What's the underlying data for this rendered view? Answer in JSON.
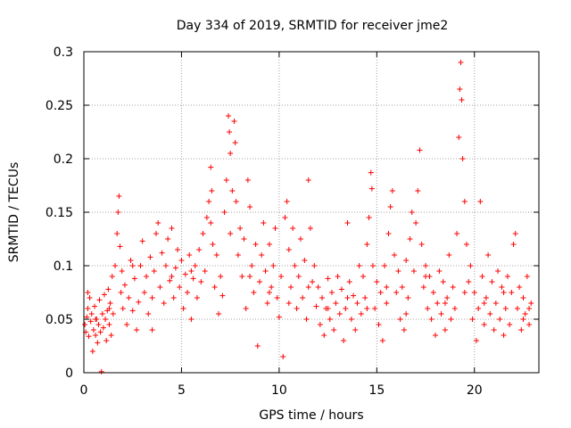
{
  "chart_data": {
    "type": "scatter",
    "title": "Day 334 of 2019, SRMTID for receiver jme2",
    "xlabel": "GPS time / hours",
    "ylabel": "SRMTID / TECUs",
    "xlim": [
      0,
      23.3
    ],
    "ylim": [
      0,
      0.3
    ],
    "grid": true,
    "x_ticks": [
      0,
      5,
      10,
      15,
      20
    ],
    "x_tick_labels": [
      "0",
      "5",
      "10",
      "15",
      "20"
    ],
    "y_ticks": [
      0,
      0.05,
      0.1,
      0.15,
      0.2,
      0.25,
      0.3
    ],
    "y_tick_labels": [
      "0",
      "0.05",
      "0.1",
      "0.15",
      "0.2",
      "0.25",
      "0.3"
    ],
    "marker": "+",
    "color": "#ff0000",
    "series": [
      {
        "name": "SRMTID",
        "points": [
          [
            0.05,
            0.045
          ],
          [
            0.1,
            0.038
          ],
          [
            0.15,
            0.052
          ],
          [
            0.2,
            0.06
          ],
          [
            0.25,
            0.034
          ],
          [
            0.3,
            0.07
          ],
          [
            0.35,
            0.048
          ],
          [
            0.4,
            0.055
          ],
          [
            0.45,
            0.02
          ],
          [
            0.5,
            0.04
          ],
          [
            0.55,
            0.062
          ],
          [
            0.6,
            0.035
          ],
          [
            0.65,
            0.05
          ],
          [
            0.7,
            0.028
          ],
          [
            0.75,
            0.045
          ],
          [
            0.8,
            0.068
          ],
          [
            0.85,
            0.038
          ],
          [
            0.9,
            0.001
          ],
          [
            0.95,
            0.055
          ],
          [
            1.0,
            0.042
          ],
          [
            1.05,
            0.073
          ],
          [
            1.1,
            0.05
          ],
          [
            1.15,
            0.03
          ],
          [
            1.2,
            0.058
          ],
          [
            1.25,
            0.078
          ],
          [
            1.3,
            0.045
          ],
          [
            1.35,
            0.065
          ],
          [
            1.4,
            0.035
          ],
          [
            1.45,
            0.09
          ],
          [
            1.5,
            0.055
          ],
          [
            1.6,
            0.1
          ],
          [
            1.7,
            0.13
          ],
          [
            1.75,
            0.15
          ],
          [
            1.8,
            0.165
          ],
          [
            1.85,
            0.118
          ],
          [
            1.9,
            0.075
          ],
          [
            1.95,
            0.095
          ],
          [
            2.0,
            0.06
          ],
          [
            2.1,
            0.082
          ],
          [
            2.2,
            0.045
          ],
          [
            2.3,
            0.07
          ],
          [
            2.4,
            0.105
          ],
          [
            2.5,
            0.058
          ],
          [
            2.6,
            0.088
          ],
          [
            2.7,
            0.04
          ],
          [
            2.8,
            0.066
          ],
          [
            2.9,
            0.1
          ],
          [
            3.0,
            0.123
          ],
          [
            3.1,
            0.075
          ],
          [
            3.2,
            0.09
          ],
          [
            3.3,
            0.055
          ],
          [
            3.4,
            0.108
          ],
          [
            3.5,
            0.07
          ],
          [
            3.6,
            0.095
          ],
          [
            3.7,
            0.13
          ],
          [
            3.8,
            0.14
          ],
          [
            3.9,
            0.08
          ],
          [
            4.0,
            0.112
          ],
          [
            4.1,
            0.065
          ],
          [
            4.2,
            0.1
          ],
          [
            4.3,
            0.125
          ],
          [
            4.4,
            0.086
          ],
          [
            4.5,
            0.135
          ],
          [
            4.6,
            0.07
          ],
          [
            4.7,
            0.098
          ],
          [
            4.8,
            0.115
          ],
          [
            4.9,
            0.08
          ],
          [
            5.0,
            0.105
          ],
          [
            5.1,
            0.06
          ],
          [
            5.2,
            0.092
          ],
          [
            5.3,
            0.075
          ],
          [
            5.4,
            0.11
          ],
          [
            5.5,
            0.05
          ],
          [
            5.6,
            0.088
          ],
          [
            5.7,
            0.1
          ],
          [
            5.8,
            0.07
          ],
          [
            5.9,
            0.115
          ],
          [
            6.0,
            0.085
          ],
          [
            6.1,
            0.13
          ],
          [
            6.2,
            0.095
          ],
          [
            6.3,
            0.145
          ],
          [
            6.4,
            0.16
          ],
          [
            6.5,
            0.192
          ],
          [
            6.55,
            0.17
          ],
          [
            6.6,
            0.12
          ],
          [
            6.7,
            0.08
          ],
          [
            6.8,
            0.11
          ],
          [
            6.9,
            0.055
          ],
          [
            7.0,
            0.09
          ],
          [
            7.1,
            0.072
          ],
          [
            7.2,
            0.15
          ],
          [
            7.3,
            0.18
          ],
          [
            7.4,
            0.24
          ],
          [
            7.45,
            0.225
          ],
          [
            7.5,
            0.205
          ],
          [
            7.6,
            0.17
          ],
          [
            7.7,
            0.235
          ],
          [
            7.75,
            0.215
          ],
          [
            7.8,
            0.16
          ],
          [
            7.9,
            0.11
          ],
          [
            8.0,
            0.135
          ],
          [
            8.1,
            0.09
          ],
          [
            8.2,
            0.125
          ],
          [
            8.3,
            0.06
          ],
          [
            8.4,
            0.18
          ],
          [
            8.5,
            0.155
          ],
          [
            8.6,
            0.1
          ],
          [
            8.7,
            0.075
          ],
          [
            8.8,
            0.12
          ],
          [
            8.9,
            0.025
          ],
          [
            9.0,
            0.085
          ],
          [
            9.1,
            0.11
          ],
          [
            9.2,
            0.14
          ],
          [
            9.3,
            0.095
          ],
          [
            9.4,
            0.065
          ],
          [
            9.5,
            0.12
          ],
          [
            9.6,
            0.08
          ],
          [
            9.7,
            0.1
          ],
          [
            9.8,
            0.135
          ],
          [
            9.9,
            0.07
          ],
          [
            10.0,
            0.052
          ],
          [
            10.1,
            0.09
          ],
          [
            10.2,
            0.015
          ],
          [
            10.3,
            0.145
          ],
          [
            10.4,
            0.16
          ],
          [
            10.5,
            0.115
          ],
          [
            10.6,
            0.08
          ],
          [
            10.7,
            0.135
          ],
          [
            10.8,
            0.1
          ],
          [
            10.9,
            0.06
          ],
          [
            11.0,
            0.09
          ],
          [
            11.1,
            0.125
          ],
          [
            11.2,
            0.07
          ],
          [
            11.3,
            0.105
          ],
          [
            11.4,
            0.05
          ],
          [
            11.5,
            0.18
          ],
          [
            11.6,
            0.135
          ],
          [
            11.7,
            0.085
          ],
          [
            11.8,
            0.1
          ],
          [
            11.9,
            0.062
          ],
          [
            12.0,
            0.08
          ],
          [
            12.1,
            0.045
          ],
          [
            12.2,
            0.07
          ],
          [
            12.3,
            0.035
          ],
          [
            12.4,
            0.06
          ],
          [
            12.5,
            0.088
          ],
          [
            12.6,
            0.05
          ],
          [
            12.7,
            0.075
          ],
          [
            12.8,
            0.04
          ],
          [
            12.9,
            0.065
          ],
          [
            13.0,
            0.09
          ],
          [
            13.1,
            0.055
          ],
          [
            13.2,
            0.078
          ],
          [
            13.3,
            0.03
          ],
          [
            13.4,
            0.06
          ],
          [
            13.5,
            0.14
          ],
          [
            13.6,
            0.085
          ],
          [
            13.7,
            0.05
          ],
          [
            13.8,
            0.072
          ],
          [
            13.9,
            0.04
          ],
          [
            14.0,
            0.065
          ],
          [
            14.1,
            0.1
          ],
          [
            14.2,
            0.055
          ],
          [
            14.3,
            0.09
          ],
          [
            14.4,
            0.07
          ],
          [
            14.5,
            0.12
          ],
          [
            14.6,
            0.145
          ],
          [
            14.7,
            0.187
          ],
          [
            14.75,
            0.172
          ],
          [
            14.8,
            0.1
          ],
          [
            14.9,
            0.06
          ],
          [
            15.0,
            0.085
          ],
          [
            15.1,
            0.045
          ],
          [
            15.2,
            0.075
          ],
          [
            15.3,
            0.03
          ],
          [
            15.4,
            0.1
          ],
          [
            15.5,
            0.065
          ],
          [
            15.6,
            0.13
          ],
          [
            15.7,
            0.155
          ],
          [
            15.8,
            0.17
          ],
          [
            15.9,
            0.11
          ],
          [
            16.0,
            0.075
          ],
          [
            16.1,
            0.095
          ],
          [
            16.2,
            0.05
          ],
          [
            16.3,
            0.08
          ],
          [
            16.4,
            0.04
          ],
          [
            16.5,
            0.105
          ],
          [
            16.6,
            0.07
          ],
          [
            16.7,
            0.125
          ],
          [
            16.8,
            0.15
          ],
          [
            16.9,
            0.095
          ],
          [
            17.0,
            0.14
          ],
          [
            17.1,
            0.17
          ],
          [
            17.2,
            0.208
          ],
          [
            17.3,
            0.12
          ],
          [
            17.4,
            0.08
          ],
          [
            17.5,
            0.1
          ],
          [
            17.6,
            0.06
          ],
          [
            17.7,
            0.09
          ],
          [
            17.8,
            0.05
          ],
          [
            17.9,
            0.075
          ],
          [
            18.0,
            0.035
          ],
          [
            18.1,
            0.065
          ],
          [
            18.2,
            0.095
          ],
          [
            18.3,
            0.055
          ],
          [
            18.4,
            0.085
          ],
          [
            18.5,
            0.04
          ],
          [
            18.6,
            0.07
          ],
          [
            18.7,
            0.11
          ],
          [
            18.8,
            0.05
          ],
          [
            18.9,
            0.08
          ],
          [
            19.0,
            0.06
          ],
          [
            19.1,
            0.13
          ],
          [
            19.2,
            0.22
          ],
          [
            19.25,
            0.265
          ],
          [
            19.3,
            0.29
          ],
          [
            19.35,
            0.255
          ],
          [
            19.4,
            0.2
          ],
          [
            19.5,
            0.16
          ],
          [
            19.6,
            0.12
          ],
          [
            19.7,
            0.085
          ],
          [
            19.8,
            0.1
          ],
          [
            19.9,
            0.05
          ],
          [
            20.0,
            0.075
          ],
          [
            20.1,
            0.03
          ],
          [
            20.2,
            0.06
          ],
          [
            20.3,
            0.16
          ],
          [
            20.4,
            0.09
          ],
          [
            20.5,
            0.045
          ],
          [
            20.6,
            0.07
          ],
          [
            20.7,
            0.11
          ],
          [
            20.8,
            0.055
          ],
          [
            20.9,
            0.085
          ],
          [
            21.0,
            0.04
          ],
          [
            21.1,
            0.065
          ],
          [
            21.2,
            0.095
          ],
          [
            21.3,
            0.05
          ],
          [
            21.4,
            0.08
          ],
          [
            21.5,
            0.035
          ],
          [
            21.6,
            0.06
          ],
          [
            21.7,
            0.09
          ],
          [
            21.8,
            0.045
          ],
          [
            21.9,
            0.075
          ],
          [
            22.0,
            0.12
          ],
          [
            22.1,
            0.13
          ],
          [
            22.2,
            0.06
          ],
          [
            22.3,
            0.08
          ],
          [
            22.4,
            0.04
          ],
          [
            22.5,
            0.07
          ],
          [
            22.6,
            0.055
          ],
          [
            22.7,
            0.09
          ],
          [
            22.8,
            0.045
          ],
          [
            22.9,
            0.065
          ],
          [
            0.2,
            0.075
          ],
          [
            0.6,
            0.05
          ],
          [
            1.3,
            0.06
          ],
          [
            2.5,
            0.1
          ],
          [
            3.5,
            0.04
          ],
          [
            4.5,
            0.09
          ],
          [
            5.5,
            0.095
          ],
          [
            6.5,
            0.14
          ],
          [
            7.5,
            0.13
          ],
          [
            8.5,
            0.09
          ],
          [
            9.5,
            0.075
          ],
          [
            10.5,
            0.065
          ],
          [
            11.5,
            0.08
          ],
          [
            12.5,
            0.06
          ],
          [
            13.5,
            0.07
          ],
          [
            14.5,
            0.06
          ],
          [
            15.5,
            0.08
          ],
          [
            16.5,
            0.055
          ],
          [
            17.5,
            0.09
          ],
          [
            18.5,
            0.065
          ],
          [
            19.5,
            0.075
          ],
          [
            20.5,
            0.065
          ],
          [
            21.5,
            0.075
          ],
          [
            22.5,
            0.05
          ],
          [
            22.8,
            0.06
          ]
        ]
      }
    ]
  }
}
